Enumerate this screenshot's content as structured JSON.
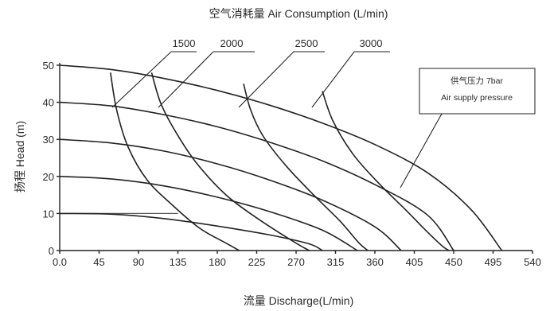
{
  "chart_data": {
    "type": "line",
    "title": "空气消耗量 Air Consumption (L/min)",
    "xlabel": "流量 Discharge(L/min)",
    "ylabel": "扬程 Head (m)",
    "xlim": [
      0,
      540
    ],
    "ylim": [
      0,
      50
    ],
    "x_ticks": [
      "0.0",
      "45",
      "90",
      "135",
      "180",
      "225",
      "270",
      "315",
      "360",
      "405",
      "450",
      "495",
      "540"
    ],
    "y_ticks": [
      "0",
      "10",
      "20",
      "30",
      "40",
      "50"
    ],
    "grid": "horizontal",
    "note": [
      "供气压力 7bar",
      "Air supply pressure"
    ],
    "air_consumption_labels": [
      "1500",
      "2000",
      "2500",
      "3000"
    ],
    "pressure_curves": [
      {
        "points": [
          [
            0,
            10
          ],
          [
            60,
            9.8
          ],
          [
            120,
            8.6
          ],
          [
            180,
            6.6
          ],
          [
            240,
            4.2
          ],
          [
            285,
            1.8
          ],
          [
            300,
            0
          ]
        ]
      },
      {
        "points": [
          [
            0,
            20
          ],
          [
            60,
            19.3
          ],
          [
            120,
            17.4
          ],
          [
            180,
            14.4
          ],
          [
            240,
            10.5
          ],
          [
            300,
            5.5
          ],
          [
            340,
            0
          ]
        ]
      },
      {
        "points": [
          [
            0,
            30
          ],
          [
            60,
            29
          ],
          [
            120,
            26.8
          ],
          [
            180,
            23.4
          ],
          [
            240,
            19
          ],
          [
            300,
            13.6
          ],
          [
            360,
            6.4
          ],
          [
            390,
            0
          ]
        ]
      },
      {
        "points": [
          [
            0,
            40
          ],
          [
            60,
            39
          ],
          [
            120,
            36.6
          ],
          [
            180,
            33.4
          ],
          [
            240,
            29.2
          ],
          [
            300,
            24.2
          ],
          [
            360,
            17.8
          ],
          [
            420,
            9.6
          ],
          [
            450,
            0
          ]
        ]
      },
      {
        "points": [
          [
            0,
            50
          ],
          [
            60,
            48.8
          ],
          [
            120,
            46.4
          ],
          [
            180,
            43.2
          ],
          [
            240,
            39.2
          ],
          [
            300,
            34.4
          ],
          [
            360,
            28.6
          ],
          [
            420,
            21
          ],
          [
            470,
            11
          ],
          [
            505,
            0
          ]
        ]
      }
    ],
    "consumption_curves": [
      {
        "name": "1500",
        "points": [
          [
            58,
            48
          ],
          [
            65,
            38
          ],
          [
            78,
            28
          ],
          [
            100,
            19
          ],
          [
            130,
            12
          ],
          [
            160,
            6
          ],
          [
            190,
            2
          ],
          [
            205,
            0
          ]
        ]
      },
      {
        "name": "2000",
        "points": [
          [
            105,
            48
          ],
          [
            115,
            40
          ],
          [
            130,
            33
          ],
          [
            155,
            24
          ],
          [
            190,
            15
          ],
          [
            230,
            8
          ],
          [
            270,
            2
          ],
          [
            285,
            0
          ]
        ]
      },
      {
        "name": "2500",
        "points": [
          [
            210,
            45
          ],
          [
            218,
            38
          ],
          [
            232,
            31
          ],
          [
            258,
            23
          ],
          [
            290,
            15
          ],
          [
            320,
            8
          ],
          [
            342,
            2
          ],
          [
            352,
            0
          ]
        ]
      },
      {
        "name": "3000",
        "points": [
          [
            300,
            43
          ],
          [
            312,
            35
          ],
          [
            335,
            26
          ],
          [
            365,
            18
          ],
          [
            395,
            11
          ],
          [
            420,
            5
          ],
          [
            438,
            1
          ],
          [
            445,
            0
          ]
        ]
      }
    ]
  }
}
